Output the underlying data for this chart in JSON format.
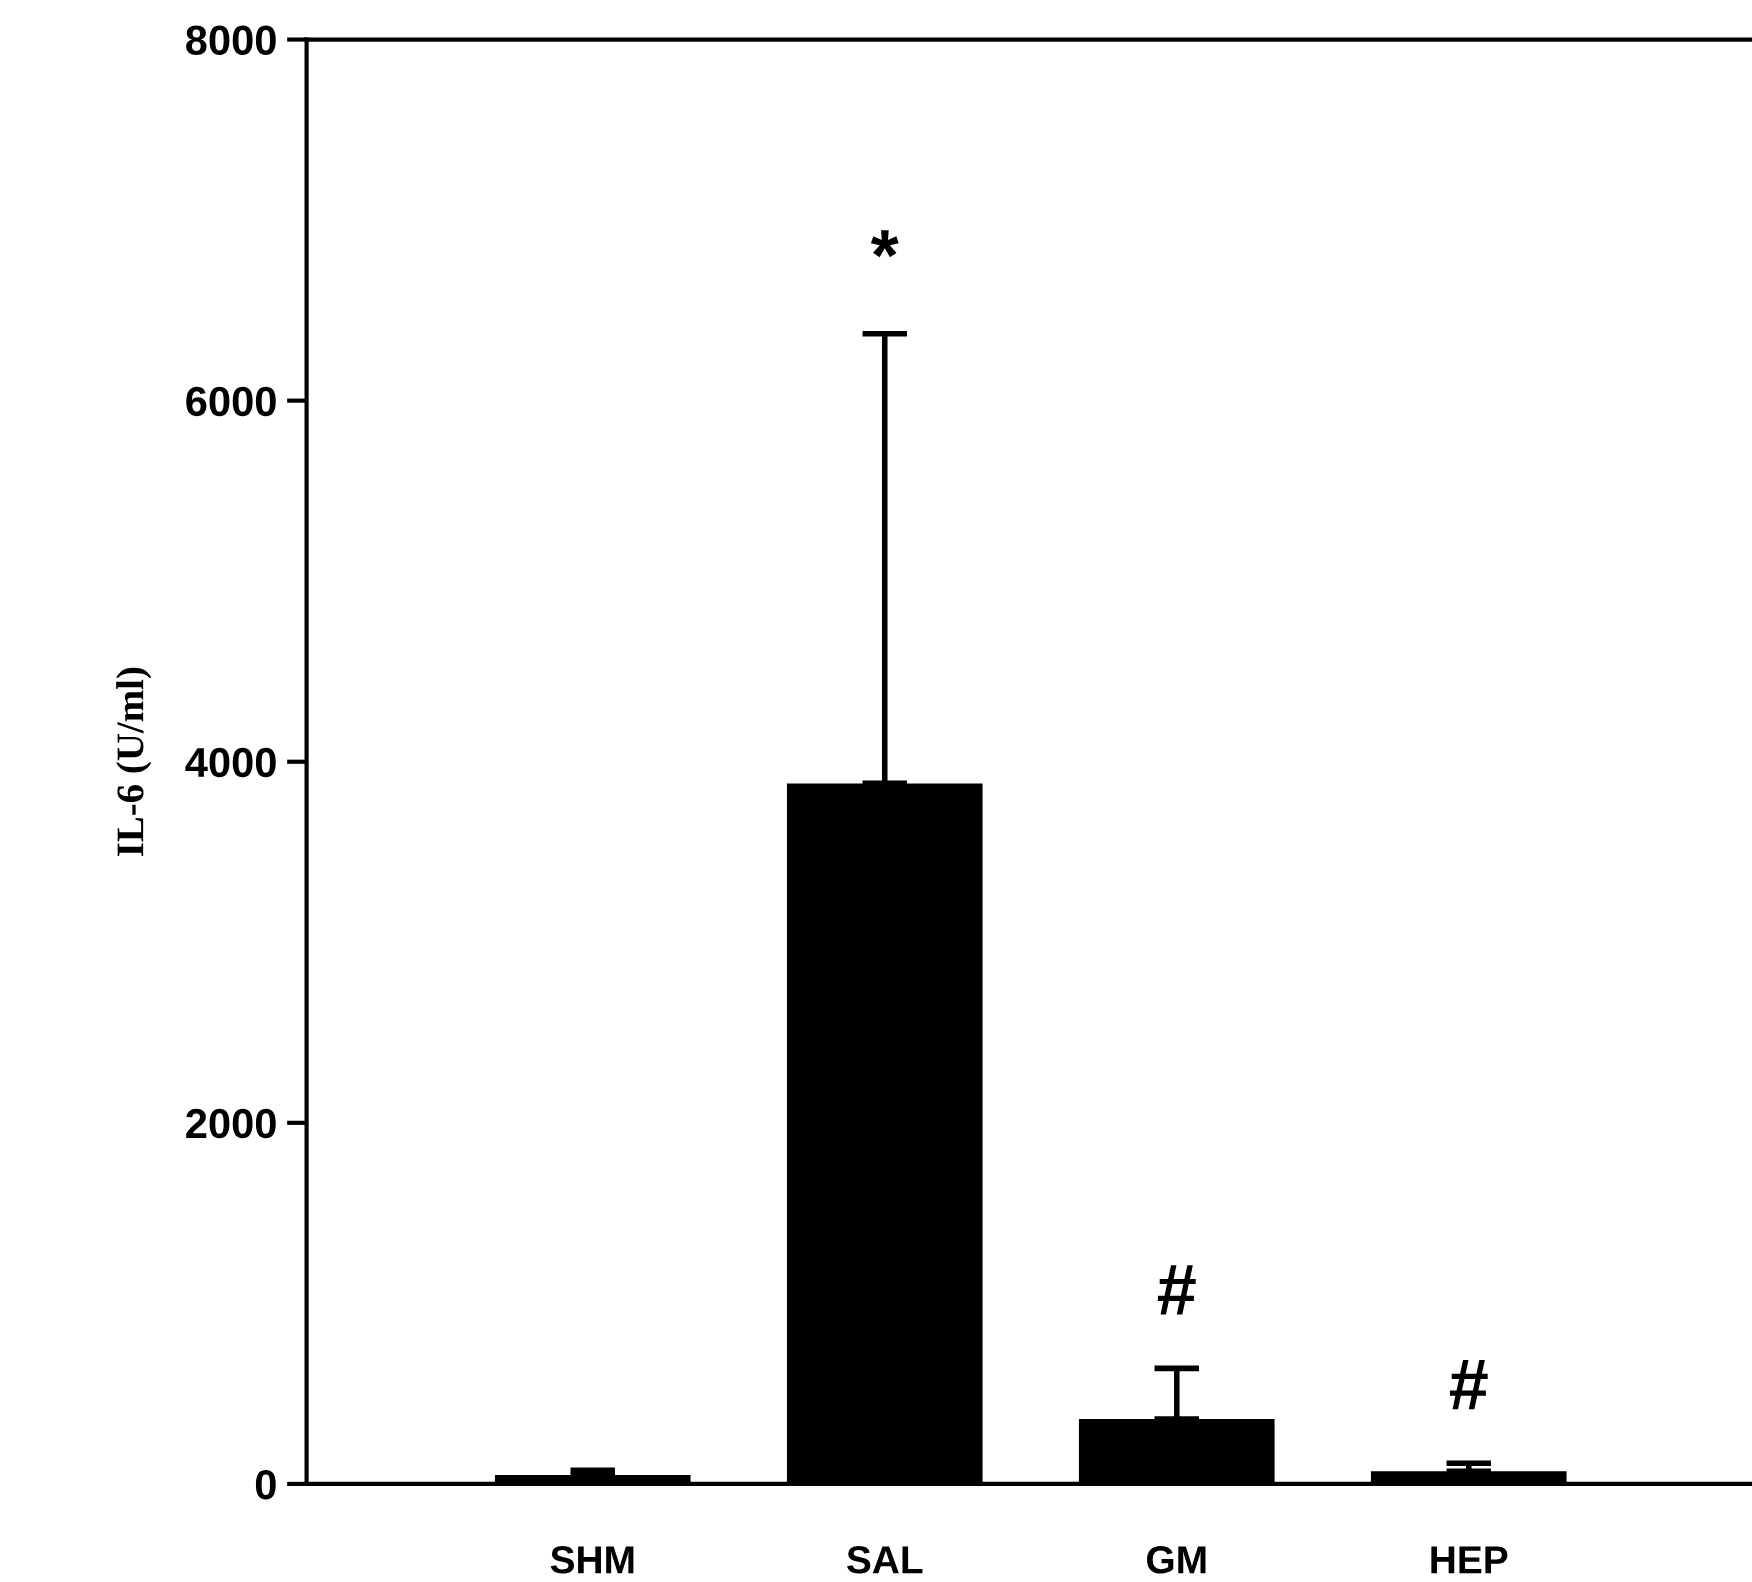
{
  "chart_data": {
    "type": "bar",
    "ylabel": "IL-6 (U/ml)",
    "categories": [
      "SHM",
      "SAL",
      "GM",
      "HEP"
    ],
    "values": [
      50,
      3880,
      360,
      70
    ],
    "errors": [
      [
        50,
        75
      ],
      [
        3880,
        6370
      ],
      [
        360,
        640
      ],
      [
        70,
        115
      ]
    ],
    "color": "#000000",
    "ylim": [
      0,
      8000
    ],
    "yticks": [
      0,
      2000,
      4000,
      6000,
      8000
    ],
    "grid": false,
    "annotations": [
      {
        "text": "*",
        "x": "SAL",
        "y": 6370
      },
      {
        "text": "#",
        "x": "GM",
        "y": 640
      },
      {
        "text": "#",
        "x": "HEP",
        "y": 115
      }
    ]
  }
}
